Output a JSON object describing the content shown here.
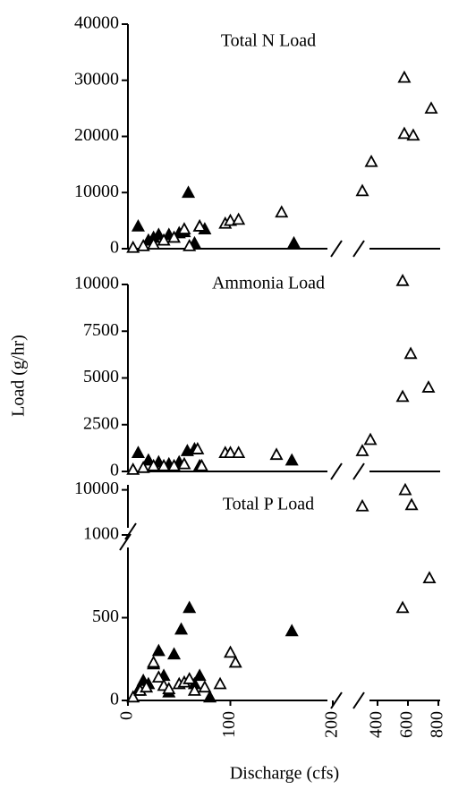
{
  "chart_data": [
    {
      "type": "scatter",
      "title": "Total N Load",
      "ylim": [
        0,
        40000
      ],
      "yticks": [
        0,
        10000,
        20000,
        30000,
        40000
      ],
      "series": [
        {
          "color": "#000",
          "filled": true,
          "x": [
            10,
            20,
            25,
            30,
            40,
            50,
            55,
            59,
            65,
            70,
            75,
            162
          ],
          "values": [
            4000,
            1500,
            2000,
            2500,
            2500,
            2800,
            3000,
            10000,
            1000,
            4000,
            3500,
            1000
          ]
        },
        {
          "color": "#000",
          "filled": false,
          "x": [
            5,
            15,
            25,
            35,
            45,
            55,
            60,
            70,
            95,
            100,
            108,
            150,
            300,
            359,
            576,
            576,
            635,
            753
          ],
          "values": [
            200,
            500,
            800,
            1500,
            2000,
            3500,
            500,
            4000,
            4500,
            5000,
            5200,
            6500,
            10300,
            15500,
            30500,
            20500,
            20200,
            25000
          ]
        }
      ]
    },
    {
      "type": "scatter",
      "title": "Ammonia Load",
      "ylabel": "Load (g/hr)",
      "ylim": [
        0,
        10000
      ],
      "yticks": [
        0,
        2500,
        5000,
        7500,
        10000
      ],
      "series": [
        {
          "color": "#000",
          "filled": true,
          "x": [
            10,
            20,
            30,
            40,
            50,
            58,
            65,
            70,
            160
          ],
          "values": [
            1000,
            600,
            500,
            400,
            500,
            1100,
            1200,
            300,
            600
          ]
        },
        {
          "color": "#000",
          "filled": false,
          "x": [
            5,
            15,
            25,
            35,
            45,
            55,
            68,
            72,
            95,
            100,
            108,
            145,
            300,
            353,
            565,
            565,
            618,
            735
          ],
          "values": [
            100,
            200,
            300,
            300,
            300,
            400,
            1200,
            300,
            1000,
            1000,
            1000,
            900,
            1100,
            1700,
            4000,
            10200,
            6300,
            4500
          ]
        }
      ]
    },
    {
      "type": "scatter",
      "title": "Total P Load",
      "xlabel": "Discharge (cfs)",
      "ylim": [
        0,
        11000
      ],
      "ybreak": 1000,
      "yticks": [
        0,
        500,
        1000,
        10000
      ],
      "xlim": [
        0,
        800
      ],
      "xbreak": [
        200,
        300
      ],
      "xticks": [
        0,
        100,
        200,
        400,
        600,
        800
      ],
      "series": [
        {
          "color": "#000",
          "filled": true,
          "x": [
            10,
            15,
            20,
            25,
            30,
            35,
            40,
            45,
            52,
            60,
            65,
            70,
            80,
            160
          ],
          "values": [
            60,
            120,
            100,
            220,
            300,
            150,
            50,
            280,
            430,
            560,
            100,
            150,
            20,
            420
          ]
        },
        {
          "color": "#000",
          "filled": false,
          "x": [
            5,
            12,
            18,
            25,
            30,
            35,
            40,
            50,
            55,
            60,
            65,
            75,
            90,
            100,
            105,
            565,
            741,
            300,
            582,
            624
          ],
          "values": [
            20,
            60,
            80,
            230,
            140,
            90,
            70,
            100,
            110,
            130,
            60,
            80,
            100,
            290,
            230,
            560,
            740,
            6760,
            10000,
            7000
          ]
        }
      ]
    }
  ]
}
